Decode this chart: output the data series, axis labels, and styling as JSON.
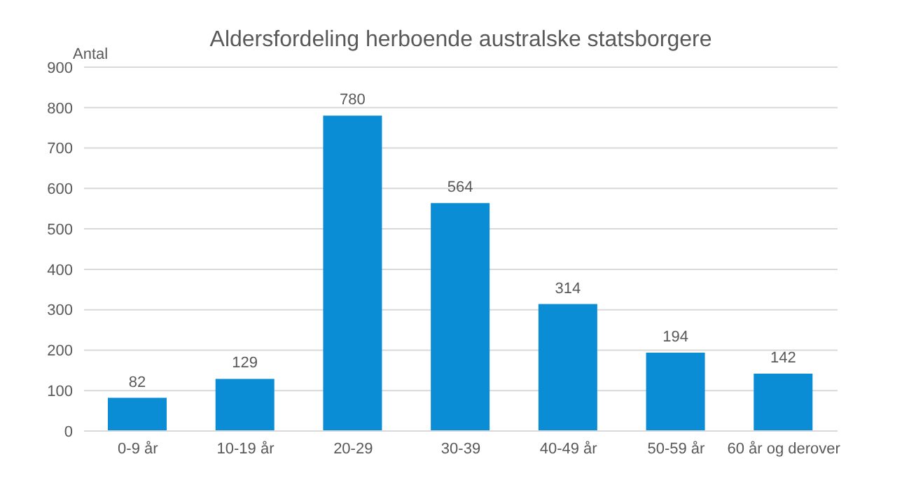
{
  "chart_data": {
    "type": "bar",
    "title": "Aldersfordeling herboende australske statsborgere",
    "ylabel": "Antal",
    "categories": [
      "0-9 år",
      "10-19 år",
      "20-29",
      "30-39",
      "40-49 år",
      "50-59 år",
      "60 år og derover"
    ],
    "values": [
      82,
      129,
      780,
      564,
      314,
      194,
      142
    ],
    "color": "#0b8dd6",
    "ylim": [
      0,
      900
    ],
    "yticks": [
      0,
      100,
      200,
      300,
      400,
      500,
      600,
      700,
      800,
      900
    ],
    "grid": "y",
    "data_labels": true
  }
}
